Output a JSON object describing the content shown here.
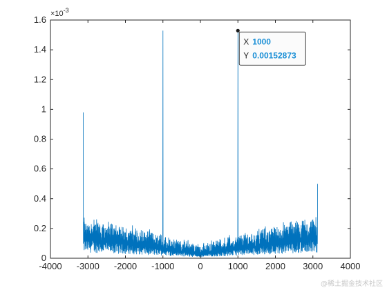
{
  "chart_data": {
    "type": "line",
    "title": "",
    "xlabel": "",
    "ylabel": "",
    "xlim": [
      -4000,
      4000
    ],
    "ylim": [
      0,
      0.0016
    ],
    "xticks": [
      -4000,
      -3000,
      -2000,
      -1000,
      0,
      1000,
      2000,
      3000,
      4000
    ],
    "xtick_labels": [
      "-4000",
      "-3000",
      "-2000",
      "-1000",
      "0",
      "1000",
      "2000",
      "3000",
      "4000"
    ],
    "yticks": [
      0,
      0.0002,
      0.0004,
      0.0006,
      0.0008,
      0.001,
      0.0012,
      0.0014,
      0.0016
    ],
    "ytick_labels": [
      "0",
      "0.2",
      "0.4",
      "0.6",
      "0.8",
      "1",
      "1.2",
      "1.4",
      "1.6"
    ],
    "y_exponent_label": "×10",
    "y_exponent_power": "-3",
    "grid": false,
    "line_color": "#0072bd",
    "series": [
      {
        "x_range": [
          -3125,
          3125
        ],
        "noise_floor_approx": [
          5e-05,
          0.00035
        ],
        "peaks": [
          {
            "x": -3125,
            "y": 0.00098
          },
          {
            "x": -1000,
            "y": 0.00152873
          },
          {
            "x": 1000,
            "y": 0.00152873
          },
          {
            "x": 3125,
            "y": 0.0005
          }
        ]
      }
    ],
    "datatip": {
      "x_label": "X",
      "x_value": "1000",
      "y_label": "Y",
      "y_value": "0.00152873",
      "x": 1000,
      "y": 0.00152873
    }
  },
  "watermark": "@稀土掘金技术社区"
}
